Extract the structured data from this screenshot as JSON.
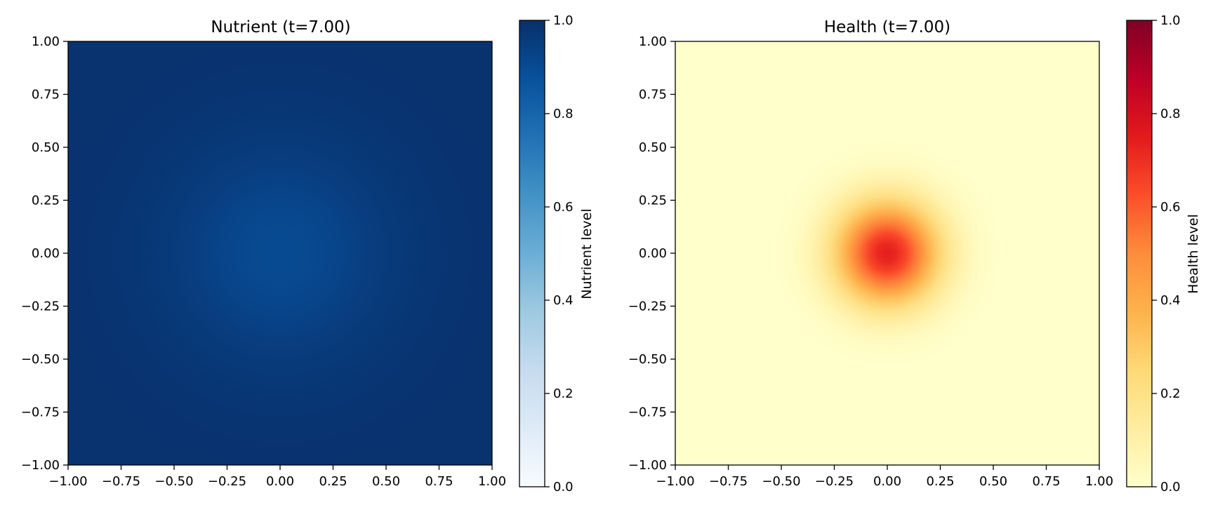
{
  "chart_data": [
    {
      "type": "heatmap",
      "title": "Nutrient (t=7.00)",
      "xlabel": "",
      "ylabel": "",
      "xlim": [
        -1.0,
        1.0
      ],
      "ylim": [
        -1.0,
        1.0
      ],
      "x_ticks": [
        "−1.00",
        "−0.75",
        "−0.50",
        "−0.25",
        "0.00",
        "0.25",
        "0.50",
        "0.75",
        "1.00"
      ],
      "y_ticks": [
        "−1.00",
        "−0.75",
        "−0.50",
        "−0.25",
        "0.00",
        "0.25",
        "0.50",
        "0.75",
        "1.00"
      ],
      "colorbar": {
        "label": "Nutrient level",
        "range": [
          0.0,
          1.0
        ],
        "ticks": [
          "0.0",
          "0.2",
          "0.4",
          "0.6",
          "0.8",
          "1.0"
        ],
        "colormap": "Blues",
        "colors": [
          "#f7fbff",
          "#deebf7",
          "#c6dbef",
          "#9ecae1",
          "#6baed6",
          "#4292c6",
          "#2171b5",
          "#08519c",
          "#08306b"
        ]
      },
      "field": {
        "description_values": {
          "background": 0.99,
          "center": 0.9,
          "center_x": 0.0,
          "center_y": 0.0,
          "spread": 0.35
        }
      }
    },
    {
      "type": "heatmap",
      "title": "Health (t=7.00)",
      "xlabel": "",
      "ylabel": "",
      "xlim": [
        -1.0,
        1.0
      ],
      "ylim": [
        -1.0,
        1.0
      ],
      "x_ticks": [
        "−1.00",
        "−0.75",
        "−0.50",
        "−0.25",
        "0.00",
        "0.25",
        "0.50",
        "0.75",
        "1.00"
      ],
      "y_ticks": [
        "−1.00",
        "−0.75",
        "−0.50",
        "−0.25",
        "0.00",
        "0.25",
        "0.50",
        "0.75",
        "1.00"
      ],
      "colorbar": {
        "label": "Health level",
        "range": [
          0.0,
          1.0
        ],
        "ticks": [
          "0.0",
          "0.2",
          "0.4",
          "0.6",
          "0.8",
          "1.0"
        ],
        "colormap": "YlOrRd",
        "colors": [
          "#ffffcc",
          "#ffeda0",
          "#fed976",
          "#feb24c",
          "#fd8d3c",
          "#fc4e2a",
          "#e31a1c",
          "#bd0026",
          "#800026"
        ]
      },
      "field": {
        "description_values": {
          "background": 0.0,
          "center": 0.74,
          "center_x": 0.0,
          "center_y": 0.0,
          "spread": 0.17
        }
      }
    }
  ]
}
